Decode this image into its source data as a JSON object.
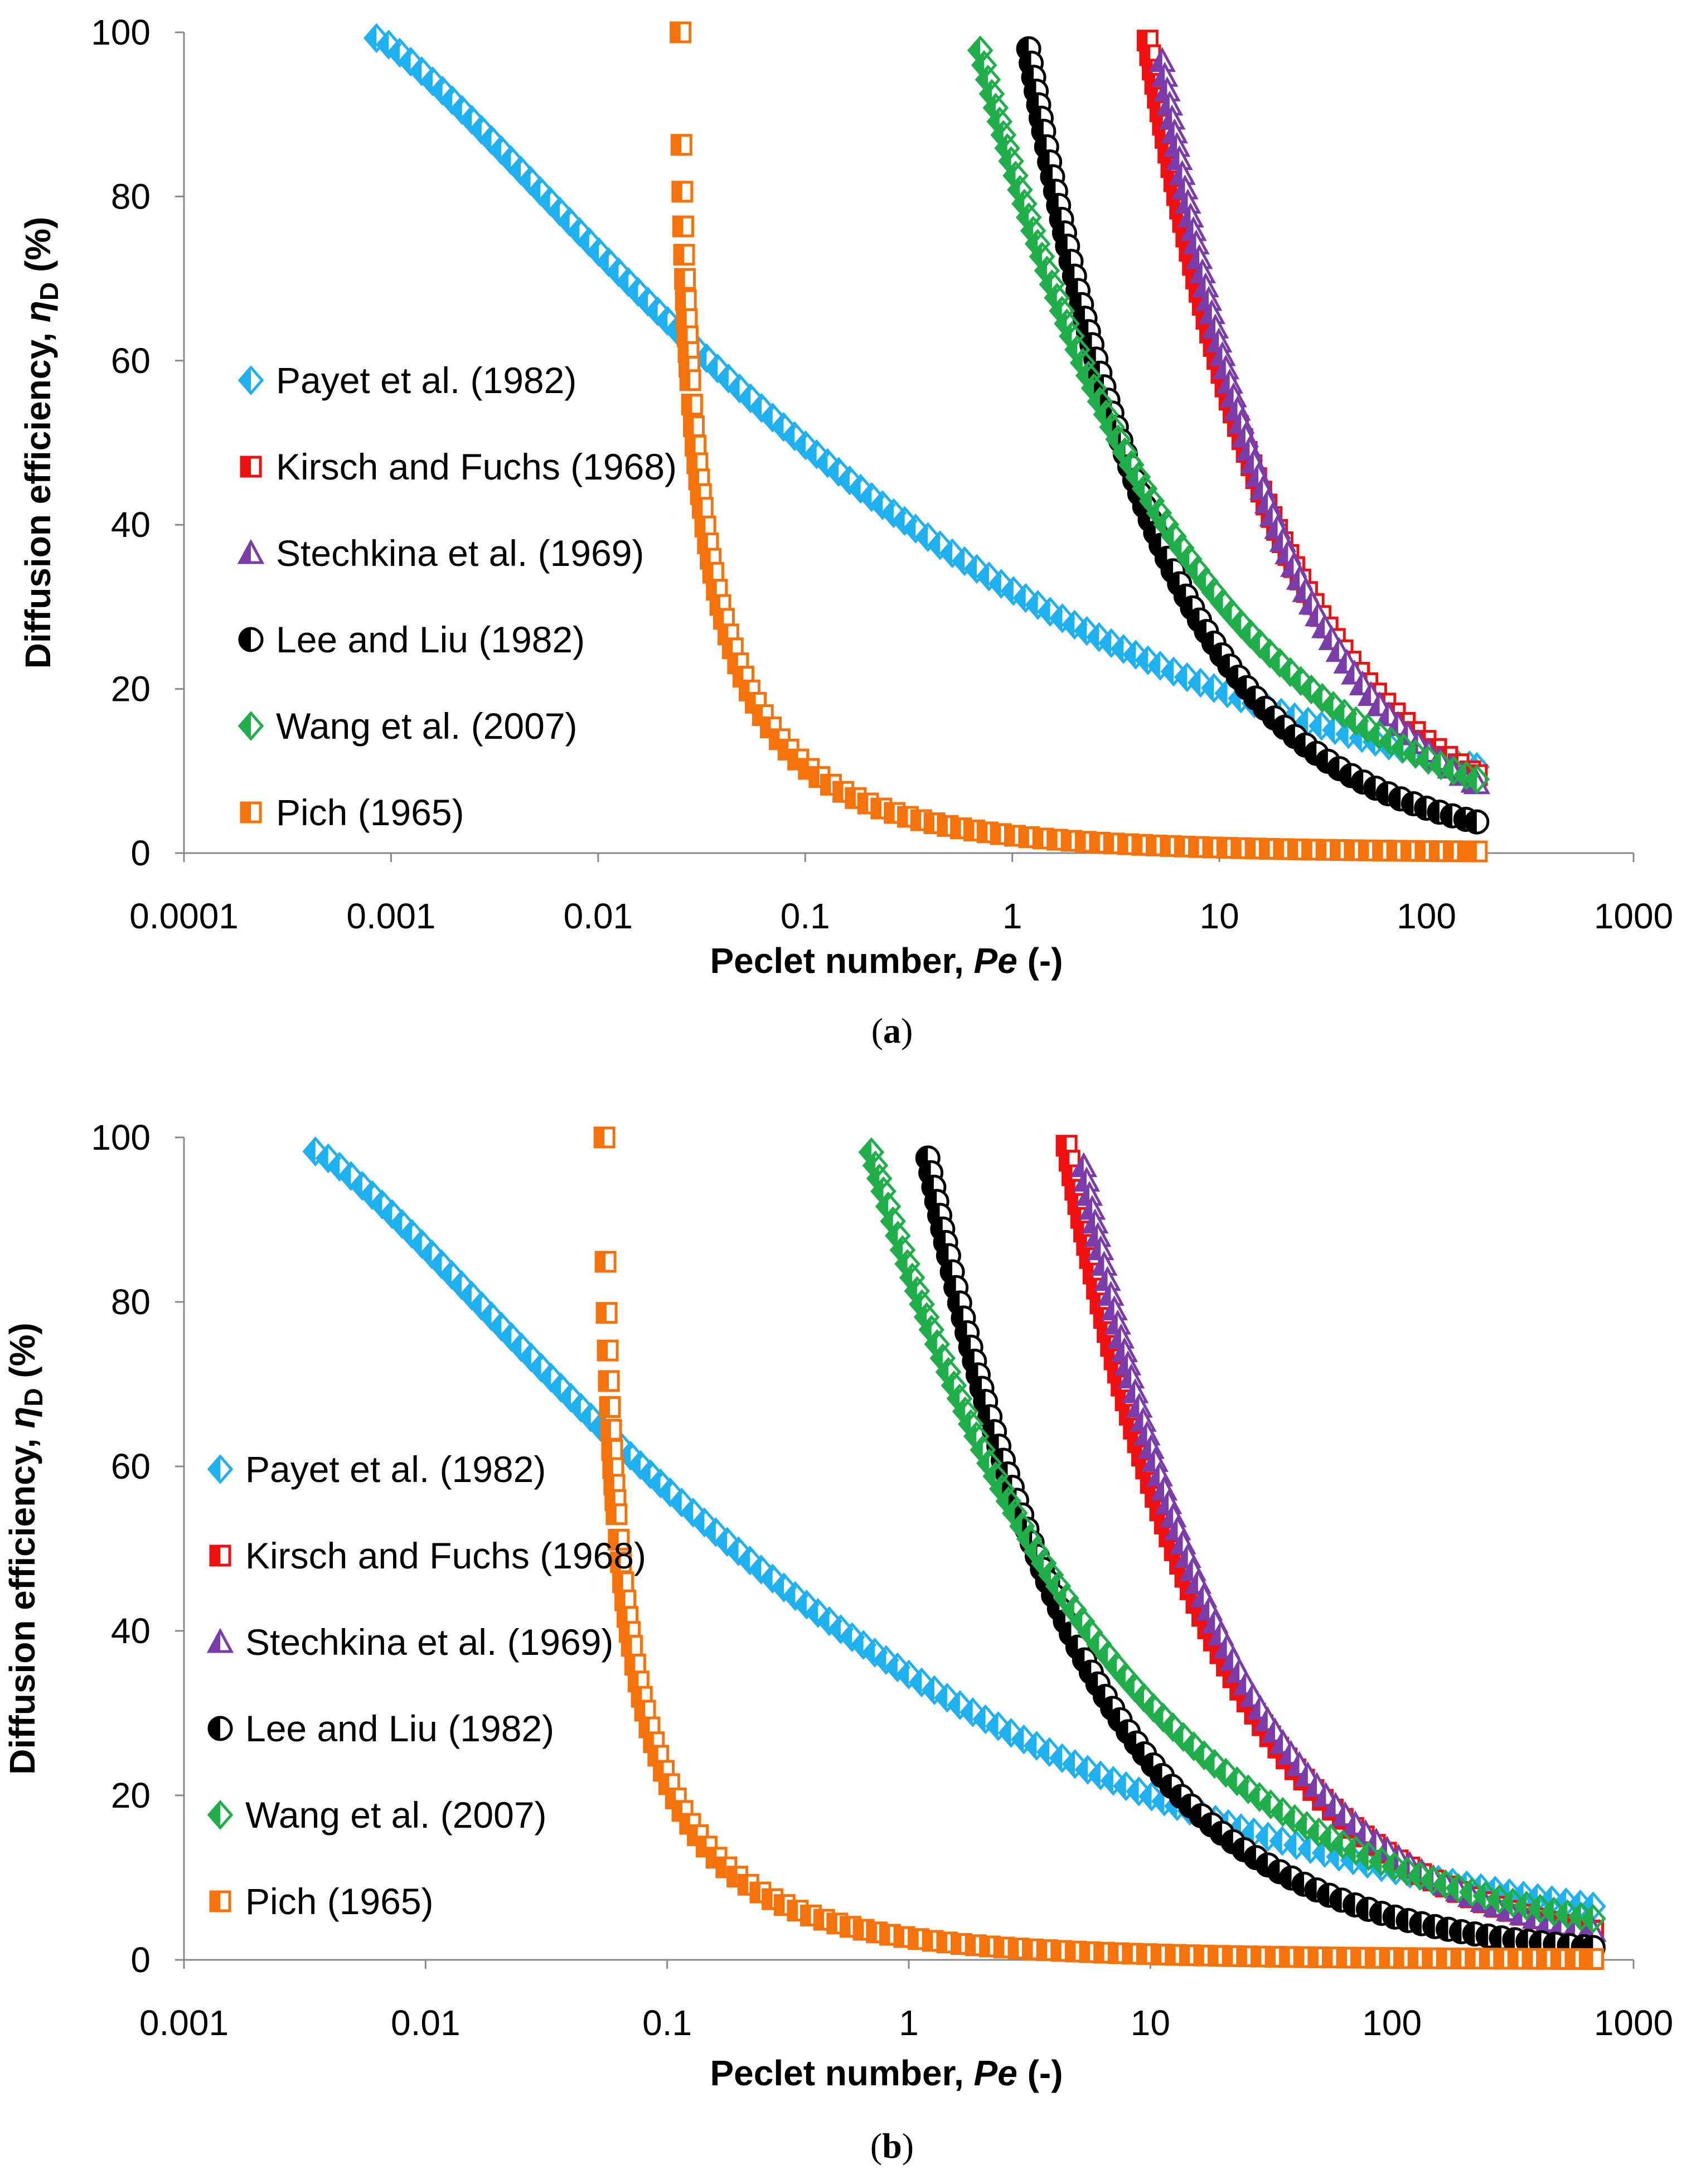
{
  "colors": {
    "payet": "#1FB0F0",
    "kirsch": "#F01010",
    "stechkina": "#7A3CA8",
    "lee": "#000000",
    "wang": "#1FAE4A",
    "pich": "#F5730A"
  },
  "chart_data": [
    {
      "type": "scatter",
      "panel_label": "a",
      "title": "",
      "xlabel": "Peclet number, ",
      "xlabel_italic": "Pe",
      "xlabel_suffix": " (-)",
      "ylabel": "Diffusion efficiency, ",
      "ylabel_symbol": "η",
      "ylabel_sub": "D",
      "ylabel_suffix": " (%)",
      "xscale": "log",
      "xlim": [
        0.0001,
        1000
      ],
      "ylim": [
        0,
        100
      ],
      "xticks": [
        0.0001,
        0.001,
        0.01,
        0.1,
        1,
        10,
        100,
        1000
      ],
      "xtick_labels": [
        "0.0001",
        "0.001",
        "0.01",
        "0.1",
        "1",
        "10",
        "100",
        "1000"
      ],
      "yticks": [
        0,
        20,
        40,
        60,
        80,
        100
      ],
      "ytick_labels": [
        "0",
        "20",
        "40",
        "60",
        "80",
        "100"
      ],
      "legend_position": "left-middle",
      "series": [
        {
          "name": "Payet et al. (1982)",
          "key": "payet",
          "marker": "diamond",
          "x_start": 0.00085,
          "x_end": 175,
          "end_value": 10.5,
          "model": "payet",
          "start_value": 99.3
        },
        {
          "name": "Kirsch and Fuchs (1968)",
          "key": "kirsch",
          "marker": "square",
          "x_start": 4.5,
          "x_end": 175,
          "end_value": 9.5,
          "model": "power",
          "start_value": 99
        },
        {
          "name": "Stechkina et al. (1969)",
          "key": "stechkina",
          "marker": "triangle",
          "x_start": 5.3,
          "x_end": 175,
          "end_value": 8.5,
          "model": "power",
          "start_value": 96.5
        },
        {
          "name": "Lee and Liu (1982)",
          "key": "lee",
          "marker": "circle",
          "x_start": 1.2,
          "x_end": 175,
          "end_value": 3.8,
          "model": "power",
          "start_value": 98
        },
        {
          "name": "Wang et al. (2007)",
          "key": "wang",
          "marker": "diamond",
          "x_start": 0.7,
          "x_end": 175,
          "end_value": 9,
          "model": "power",
          "start_value": 97.8
        },
        {
          "name": "Pich (1965)",
          "key": "pich",
          "marker": "square",
          "x_start": 0.025,
          "x_end": 175,
          "end_value": 0.2,
          "model": "pich",
          "start_value": 100
        }
      ]
    },
    {
      "type": "scatter",
      "panel_label": "b",
      "title": "",
      "xlabel": "Peclet number, ",
      "xlabel_italic": "Pe",
      "xlabel_suffix": " (-)",
      "ylabel": "Diffusion efficiency, ",
      "ylabel_symbol": "η",
      "ylabel_sub": "D",
      "ylabel_suffix": " (%)",
      "xscale": "log",
      "xlim": [
        0.001,
        1000
      ],
      "ylim": [
        0,
        100
      ],
      "xticks": [
        0.001,
        0.01,
        0.1,
        1,
        10,
        100,
        1000
      ],
      "xtick_labels": [
        "0.001",
        "0.01",
        "0.1",
        "1",
        "10",
        "100",
        "1000"
      ],
      "yticks": [
        0,
        20,
        40,
        60,
        80,
        100
      ],
      "ytick_labels": [
        "0",
        "20",
        "40",
        "60",
        "80",
        "100"
      ],
      "legend_position": "left-middle",
      "series": [
        {
          "name": "Payet et al. (1982)",
          "key": "payet",
          "marker": "diamond",
          "x_start": 0.0035,
          "x_end": 680,
          "end_value": 6.5,
          "model": "payet",
          "start_value": 98.3
        },
        {
          "name": "Kirsch and Fuchs (1968)",
          "key": "kirsch",
          "marker": "square",
          "x_start": 4.5,
          "x_end": 680,
          "end_value": 3.5,
          "model": "power",
          "start_value": 99
        },
        {
          "name": "Stechkina et al. (1969)",
          "key": "stechkina",
          "marker": "triangle",
          "x_start": 5.3,
          "x_end": 680,
          "end_value": 3.5,
          "model": "power",
          "start_value": 96.5
        },
        {
          "name": "Lee and Liu (1982)",
          "key": "lee",
          "marker": "circle",
          "x_start": 1.2,
          "x_end": 680,
          "end_value": 1.5,
          "model": "power",
          "start_value": 97.5
        },
        {
          "name": "Wang et al. (2007)",
          "key": "wang",
          "marker": "diamond",
          "x_start": 0.7,
          "x_end": 680,
          "end_value": 5,
          "model": "power",
          "start_value": 98.2
        },
        {
          "name": "Pich (1965)",
          "key": "pich",
          "marker": "square",
          "x_start": 0.055,
          "x_end": 680,
          "end_value": 0.1,
          "model": "pich",
          "start_value": 100
        }
      ]
    }
  ]
}
